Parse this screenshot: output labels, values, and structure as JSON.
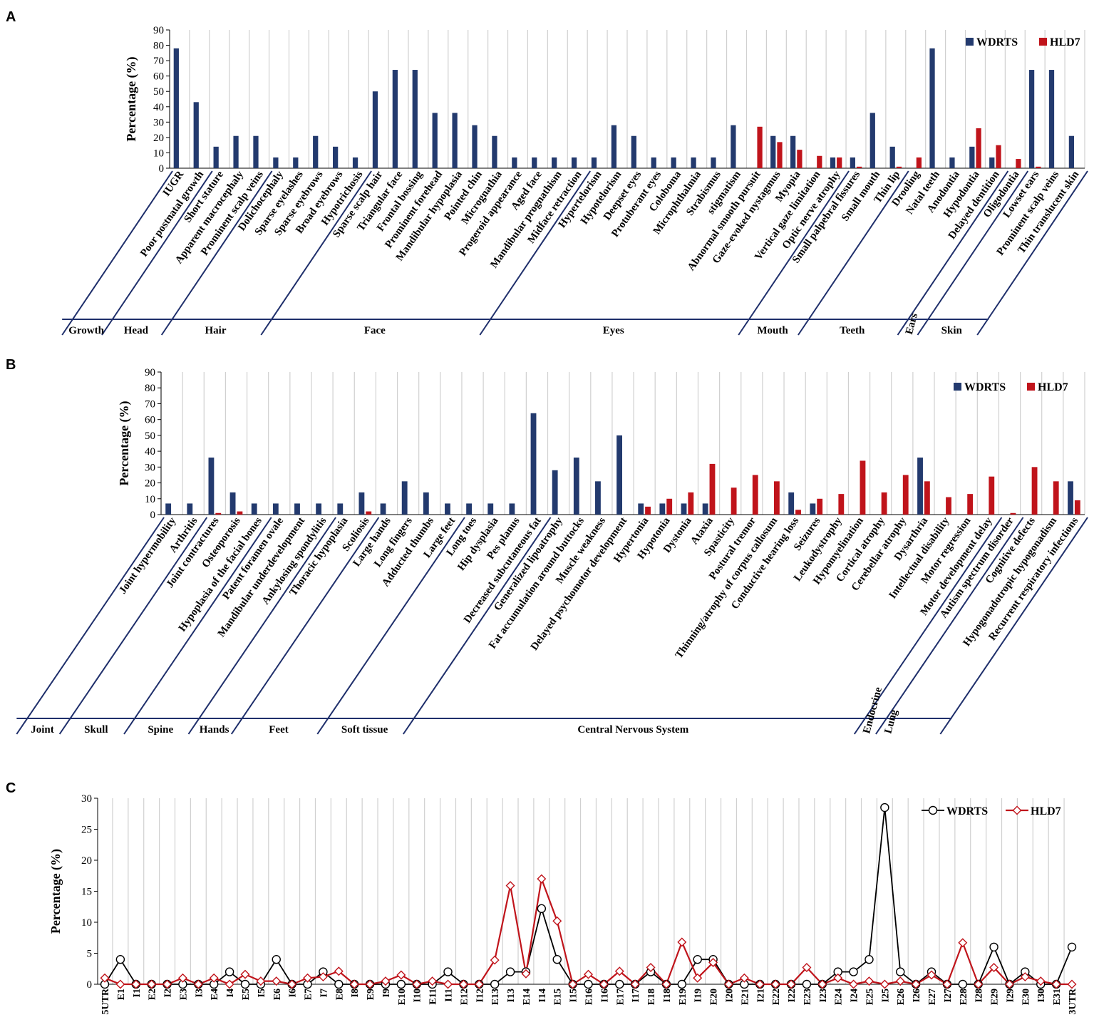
{
  "colors": {
    "wdrts": "#233a6e",
    "hld7": "#c0141b",
    "grid": "#d0d0d0",
    "group_lines": "#1f2f6b",
    "c_wdrts": "#000000",
    "c_hld7": "#c0141b"
  },
  "chart_data": [
    {
      "id": "A",
      "panel_label": "A",
      "type": "bar",
      "ylabel": "Percentage (%)",
      "ylim": [
        0,
        90
      ],
      "yticks": [
        0,
        10,
        20,
        30,
        40,
        50,
        60,
        70,
        80,
        90
      ],
      "grid": true,
      "legend_position": "top-right",
      "categories": [
        "IUGR",
        "Poor postnatal growth",
        "Short stature",
        "Apparent macrocephaly",
        "Prominent scalp veins",
        "Dolichocephaly",
        "Sparse eyelashes",
        "Sparse eyebrows",
        "Broad eyebrows",
        "Hypotrichosis",
        "Sparse scalp hair",
        "Triangular face",
        "Frontal bossing",
        "Prominent forehead",
        "Mandibular hypoplasia",
        "Pointed chin",
        "Micrognathia",
        "Progeroid appearance",
        "Aged face",
        "Mandibular prognathism",
        "Midface retraction",
        "Hypertelorism",
        "Hypotelorism",
        "Deepset eyes",
        "Protuberant eyes",
        "Coloboma",
        "Microphthalmia",
        "Strabismus",
        "stigmatism",
        "Abnormal smooth pursuit",
        "Gaze-evoked nystagmus",
        "Myopia",
        "Vertical gaze limitation",
        "Optic nerve atrophy",
        "Small palpebral fissures",
        "Small mouth",
        "Thin lip",
        "Drooling",
        "Natal teeth",
        "Anodontia",
        "Hypodontia",
        "Delayed dentition",
        "Oligodontia",
        "Lowset ears",
        "Prominent scalp veins",
        "Thin translucent skin"
      ],
      "series": [
        {
          "name": "WDRTS",
          "values": [
            78,
            43,
            14,
            21,
            21,
            7,
            7,
            21,
            14,
            7,
            50,
            64,
            64,
            36,
            36,
            28,
            21,
            7,
            7,
            7,
            7,
            7,
            28,
            21,
            7,
            7,
            7,
            7,
            28,
            0,
            21,
            21,
            0,
            7,
            7,
            36,
            14,
            0,
            78,
            7,
            14,
            7,
            0,
            64,
            64,
            21
          ]
        },
        {
          "name": "HLD7",
          "values": [
            0,
            0,
            0,
            0,
            0,
            0,
            0,
            0,
            0,
            0,
            0,
            0,
            0,
            0,
            0,
            0,
            0,
            0,
            0,
            0,
            0,
            0,
            0,
            0,
            0,
            0,
            0,
            0,
            0,
            27,
            17,
            12,
            8,
            7,
            1,
            0,
            1,
            7,
            0,
            0,
            26,
            15,
            6,
            1,
            0,
            0
          ]
        }
      ],
      "groups": [
        {
          "name": "Growth",
          "start": 0,
          "end": 1
        },
        {
          "name": "Head",
          "start": 2,
          "end": 4
        },
        {
          "name": "Hair",
          "start": 5,
          "end": 9
        },
        {
          "name": "Face",
          "start": 10,
          "end": 20
        },
        {
          "name": "Eyes",
          "start": 21,
          "end": 33
        },
        {
          "name": "Mouth",
          "start": 34,
          "end": 36
        },
        {
          "name": "Teeth",
          "start": 37,
          "end": 41
        },
        {
          "name": "Ears",
          "start": 42,
          "end": 42
        },
        {
          "name": "Skin",
          "start": 43,
          "end": 45
        }
      ]
    },
    {
      "id": "B",
      "panel_label": "B",
      "type": "bar",
      "ylabel": "Percentage (%)",
      "ylim": [
        0,
        90
      ],
      "yticks": [
        0,
        10,
        20,
        30,
        40,
        50,
        60,
        70,
        80,
        90
      ],
      "grid": true,
      "legend_position": "top-right",
      "categories": [
        "Joint hypermobility",
        "Arthritis",
        "Joint contractures",
        "Osteoporosis",
        "Hypoplasia of the facial bones",
        "Patent foramen ovale",
        "Mandibular underdevelopment",
        "Ankylosing spondylitis",
        "Thoracic hypoplasia",
        "Scoliosis",
        "Large hands",
        "Long fingers",
        "Adducted thumbs",
        "Large feet",
        "Long toes",
        "Hip dysplasia",
        "Pes planus",
        "Decreased subcutaneous fat",
        "Generalized lipoatrophy",
        "Fat accumulation around buttocks",
        "Muscle weakness",
        "Delayed psychomotor development",
        "Hypertonia",
        "Hypotonia",
        "Dystonia",
        "Ataxia",
        "Spasticity",
        "Postural tremor",
        "Thinning/atrophy of corpus callosum",
        "Conductive hearing loss",
        "Seizures",
        "Leukodystrophy",
        "Hypomyelination",
        "Cortical atrophy",
        "Cerebellar atrophy",
        "Dysarthria",
        "Intellectual disability",
        "Motor regression",
        "Motor development delay",
        "Autism spectrum disorder",
        "Cognitive defects",
        "Hypogonadotropic hypogonadism",
        "Recurrent respiratory infections"
      ],
      "series": [
        {
          "name": "WDRTS",
          "values": [
            7,
            7,
            36,
            14,
            7,
            7,
            7,
            7,
            7,
            14,
            7,
            21,
            14,
            7,
            7,
            7,
            7,
            64,
            28,
            36,
            21,
            50,
            7,
            7,
            7,
            7,
            0,
            0,
            0,
            14,
            7,
            0,
            0,
            0,
            0,
            36,
            0,
            0,
            0,
            0,
            0,
            0,
            21
          ]
        },
        {
          "name": "HLD7",
          "values": [
            0,
            0,
            1,
            2,
            0,
            0,
            0,
            0,
            0,
            2,
            0,
            0,
            0,
            0,
            0,
            0,
            0,
            0,
            0,
            0,
            0,
            0,
            5,
            10,
            14,
            32,
            17,
            25,
            21,
            3,
            10,
            13,
            34,
            14,
            25,
            21,
            11,
            13,
            24,
            1,
            30,
            21,
            9
          ]
        }
      ],
      "groups": [
        {
          "name": "Joint",
          "start": 0,
          "end": 1
        },
        {
          "name": "Skull",
          "start": 2,
          "end": 4
        },
        {
          "name": "Spine",
          "start": 5,
          "end": 7
        },
        {
          "name": "Hands",
          "start": 8,
          "end": 9
        },
        {
          "name": "Feet",
          "start": 10,
          "end": 13
        },
        {
          "name": "Soft tissue",
          "start": 14,
          "end": 17
        },
        {
          "name": "Central Nervous System",
          "start": 18,
          "end": 38
        },
        {
          "name": "Endocrine",
          "start": 39,
          "end": 39
        },
        {
          "name": "Lung",
          "start": 40,
          "end": 40
        }
      ]
    },
    {
      "id": "C",
      "panel_label": "C",
      "type": "line",
      "ylabel": "Percentage (%)",
      "ylim": [
        0,
        30
      ],
      "yticks": [
        0,
        5,
        10,
        15,
        20,
        25,
        30
      ],
      "grid": true,
      "legend_position": "top-right",
      "x": [
        "5UTR",
        "E1",
        "I1",
        "E2",
        "I2",
        "E3",
        "I3",
        "E4",
        "I4",
        "E5",
        "I5",
        "E6",
        "I6",
        "E7",
        "I7",
        "E8",
        "I8",
        "E9",
        "I9",
        "E10",
        "I10",
        "E11",
        "I11",
        "E12",
        "I12",
        "E13",
        "I13",
        "E14",
        "I14",
        "E15",
        "I15",
        "E16",
        "I16",
        "E17",
        "I17",
        "E18",
        "I18",
        "E19",
        "I19",
        "E20",
        "I20",
        "E21",
        "I21",
        "E22",
        "I22",
        "E23",
        "I23",
        "E24",
        "I24",
        "E25",
        "I25",
        "E26",
        "I26",
        "E27",
        "I27",
        "E28",
        "I28",
        "E29",
        "I29",
        "E30",
        "I30",
        "E31",
        "3UTR"
      ],
      "series": [
        {
          "name": "WDRTS",
          "marker": "circle",
          "values": [
            0,
            4,
            0,
            0,
            0,
            0,
            0,
            0,
            2,
            0,
            0,
            4,
            0,
            0,
            2,
            0,
            0,
            0,
            0,
            0,
            0,
            0,
            2,
            0,
            0,
            0,
            2,
            2,
            12.2,
            4,
            0,
            0,
            0,
            0,
            0,
            2,
            0,
            0,
            4,
            4,
            0,
            0,
            0,
            0,
            0,
            0,
            0,
            2,
            2,
            4,
            28.5,
            2,
            0,
            2,
            0,
            0,
            0,
            6,
            0,
            2,
            0,
            0,
            6
          ]
        },
        {
          "name": "HLD7",
          "marker": "diamond",
          "values": [
            1,
            0,
            0,
            0,
            0,
            1,
            0,
            1,
            0,
            1.6,
            0.5,
            0.5,
            0,
            1,
            1.2,
            2.1,
            0,
            0,
            0.5,
            1.5,
            0,
            0.5,
            0,
            0,
            0,
            3.9,
            15.9,
            1.7,
            17,
            10.2,
            0,
            1.6,
            0,
            2.1,
            0,
            2.7,
            0,
            6.8,
            1,
            3.5,
            0,
            1,
            0,
            0,
            0,
            2.7,
            0,
            1,
            0,
            0.5,
            0,
            0.5,
            0,
            1.5,
            0,
            6.7,
            0,
            2.7,
            0,
            1.2,
            0.5,
            0,
            0
          ]
        }
      ],
      "note": "Third panel x values listed in order of exon/intron tick labels."
    }
  ]
}
